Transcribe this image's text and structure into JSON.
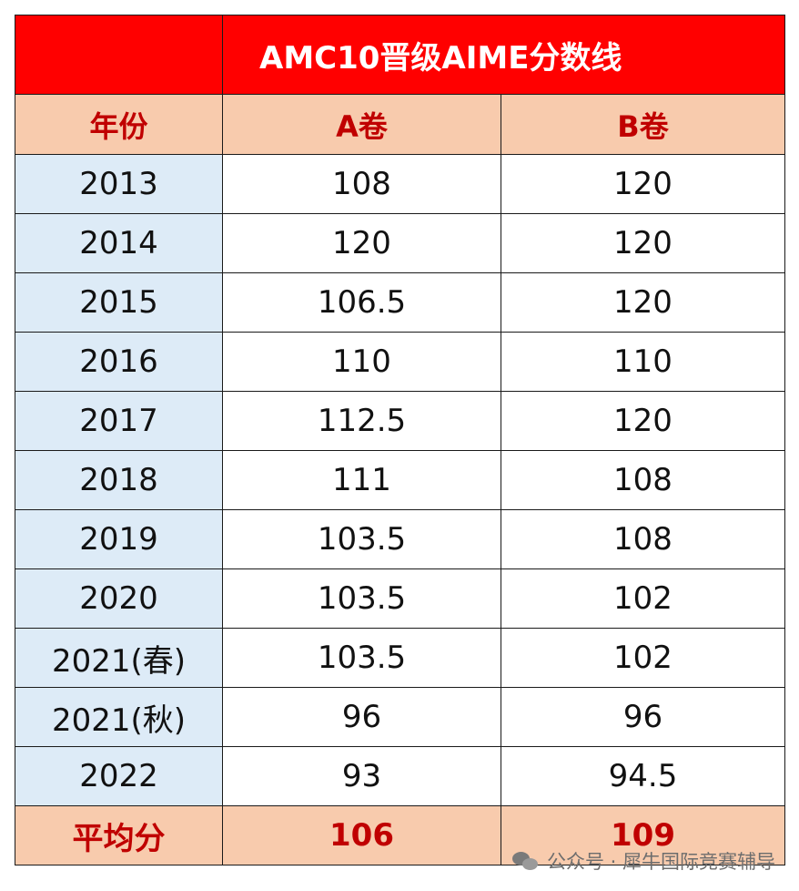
{
  "title": "AMC10晋级AIME分数线",
  "headers": [
    "年份",
    "A卷",
    "B卷"
  ],
  "rows": [
    {
      "year": "2013",
      "a": "108",
      "b": "120"
    },
    {
      "year": "2014",
      "a": "120",
      "b": "120"
    },
    {
      "year": "2015",
      "a": "106.5",
      "b": "120"
    },
    {
      "year": "2016",
      "a": "110",
      "b": "110"
    },
    {
      "year": "2017",
      "a": "112.5",
      "b": "120"
    },
    {
      "year": "2018",
      "a": "111",
      "b": "108"
    },
    {
      "year": "2019",
      "a": "103.5",
      "b": "108"
    },
    {
      "year": "2020",
      "a": "103.5",
      "b": "102"
    },
    {
      "year": "2021(春)",
      "a": "103.5",
      "b": "102"
    },
    {
      "year": "2021(秋)",
      "a": "96",
      "b": "96"
    },
    {
      "year": "2022",
      "a": "93",
      "b": "94.5"
    }
  ],
  "average": {
    "label": "平均分",
    "a": "106",
    "b": "109"
  },
  "watermark": {
    "icon": "wechat-icon",
    "text": "公众号 · 犀牛国际竞赛辅导"
  },
  "colors": {
    "title_bg": "#ff0000",
    "header_bg": "#f8cbad",
    "header_text": "#c00000",
    "year_bg": "#ddebf7"
  }
}
